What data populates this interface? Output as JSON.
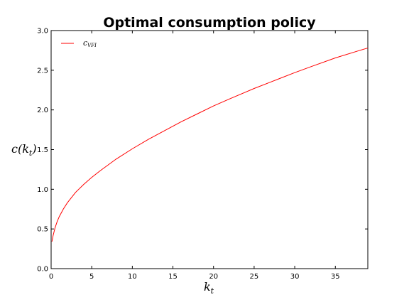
{
  "chart_data": {
    "type": "line",
    "title": "Optimal consumption policy",
    "xlabel": "k",
    "xlabel_sub": "t",
    "ylabel_main": "c(k",
    "ylabel_sub": "t",
    "ylabel_close": ")",
    "xlim": [
      0,
      39
    ],
    "ylim": [
      0,
      3.0
    ],
    "xticks": [
      0,
      5,
      10,
      15,
      20,
      25,
      30,
      35
    ],
    "xtick_labels": [
      "0",
      "5",
      "10",
      "15",
      "20",
      "25",
      "30",
      "35"
    ],
    "yticks": [
      0,
      0.5,
      1.0,
      1.5,
      2.0,
      2.5,
      3.0
    ],
    "ytick_labels": [
      "0.0",
      "0.5",
      "1.0",
      "1.5",
      "2.0",
      "2.5",
      "3.0"
    ],
    "grid": false,
    "legend_position": "top-left",
    "series": [
      {
        "name_main": "c",
        "name_sub": "VFI",
        "color": "#ff0000",
        "x": [
          0.1,
          0.25,
          0.5,
          0.75,
          1,
          1.5,
          2,
          3,
          4,
          5,
          6,
          8,
          10,
          12,
          14,
          16,
          18,
          20,
          22,
          25,
          28,
          30,
          32,
          35,
          38,
          39
        ],
        "y": [
          0.34,
          0.42,
          0.52,
          0.595,
          0.655,
          0.75,
          0.83,
          0.96,
          1.06,
          1.15,
          1.23,
          1.38,
          1.51,
          1.63,
          1.74,
          1.85,
          1.95,
          2.05,
          2.14,
          2.27,
          2.39,
          2.47,
          2.545,
          2.655,
          2.75,
          2.78
        ]
      }
    ]
  }
}
